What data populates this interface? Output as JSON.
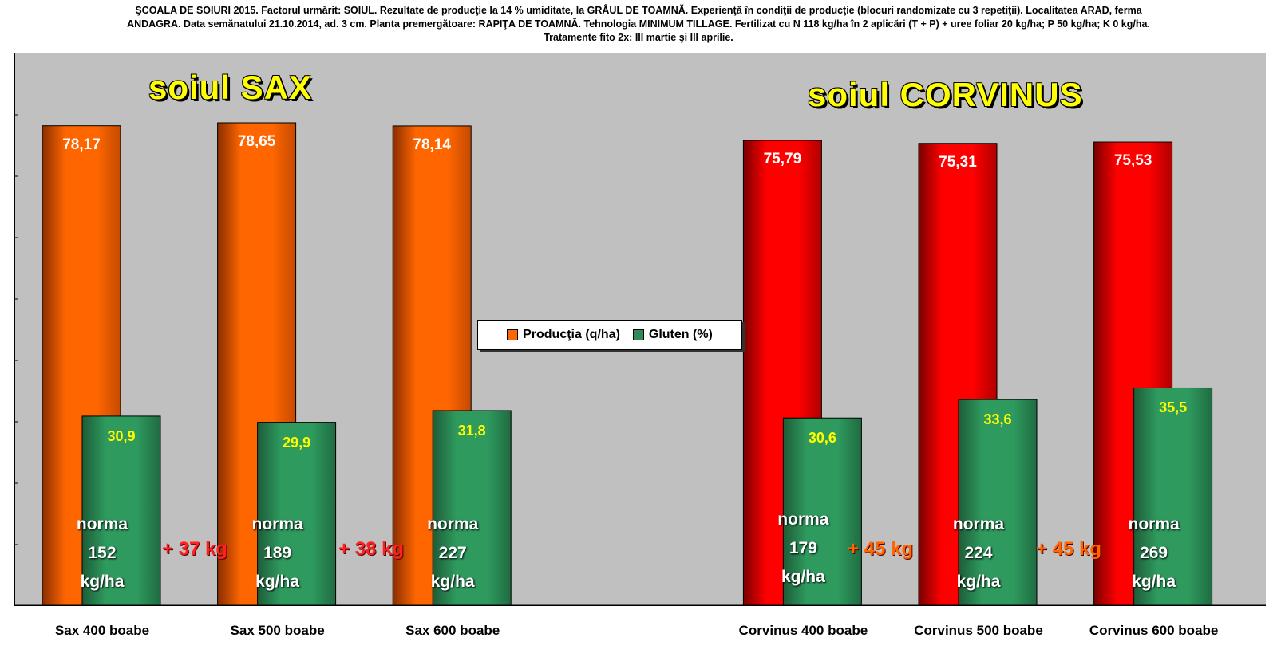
{
  "header": {
    "line1": "ŞCOALA DE SOIURI 2015. Factorul urmărit:  SOIUL. Rezultate de producţie la 14 % umiditate, la GRÂUL DE TOAMNĂ. Experienţă în condiţii de producţie (blocuri randomizate cu 3 repetiţii). Localitatea ARAD, ferma",
    "line2": "ANDAGRA. Data semănatului 21.10.2014, ad. 3 cm. Planta premergătoare: RAPIŢA DE TOAMNĂ. Tehnologia MINIMUM TILLAGE. Fertilizat cu N 118 kg/ha în 2 aplicări (T + P) + uree foliar 20 kg/ha; P 50 kg/ha; K 0 kg/ha.",
    "line3": "Tratamente fito 2x: III martie şi III aprilie."
  },
  "group_titles": {
    "sax": "soiul SAX",
    "corvinus": "soiul CORVINUS"
  },
  "legend": {
    "productia": "Producţia (q/ha)",
    "gluten": "Gluten (%)"
  },
  "colors": {
    "sax_bar": "#ff6600",
    "corvinus_bar": "#ff0000",
    "gluten_bar": "#2e8b57",
    "plot_bg": "#c0c0c0"
  },
  "chart_data": {
    "type": "bar",
    "categories": [
      "Sax 400 boabe",
      "Sax 500 boabe",
      "Sax 600 boabe",
      "",
      "Corvinus 400 boabe",
      "Corvinus 500 boabe",
      "Corvinus 600 boabe"
    ],
    "series": [
      {
        "name": "Producţia (q/ha)",
        "values": [
          78.17,
          78.65,
          78.14,
          null,
          75.79,
          75.31,
          75.53
        ],
        "labels": [
          "78,17",
          "78,65",
          "78,14",
          "",
          "75,79",
          "75,31",
          "75,53"
        ]
      },
      {
        "name": "Gluten (%)",
        "values": [
          30.9,
          29.9,
          31.8,
          null,
          30.6,
          33.6,
          35.5
        ],
        "labels": [
          "30,9",
          "29,9",
          "31,8",
          "",
          "30,6",
          "33,6",
          "35,5"
        ]
      }
    ],
    "ylim": [
      0,
      90
    ],
    "grid": false,
    "legend_position": "center",
    "norma": [
      {
        "label": "norma",
        "value": "152",
        "unit": "kg/ha"
      },
      {
        "label": "norma",
        "value": "189",
        "unit": "kg/ha"
      },
      {
        "label": "norma",
        "value": "227",
        "unit": "kg/ha"
      },
      null,
      {
        "label": "norma",
        "value": "179",
        "unit": "kg/ha"
      },
      {
        "label": "norma",
        "value": "224",
        "unit": "kg/ha"
      },
      {
        "label": "norma",
        "value": "269",
        "unit": "kg/ha"
      }
    ],
    "increments": [
      "+ 37 kg",
      "+ 38 kg",
      "+ 45 kg",
      "+ 45 kg"
    ]
  }
}
